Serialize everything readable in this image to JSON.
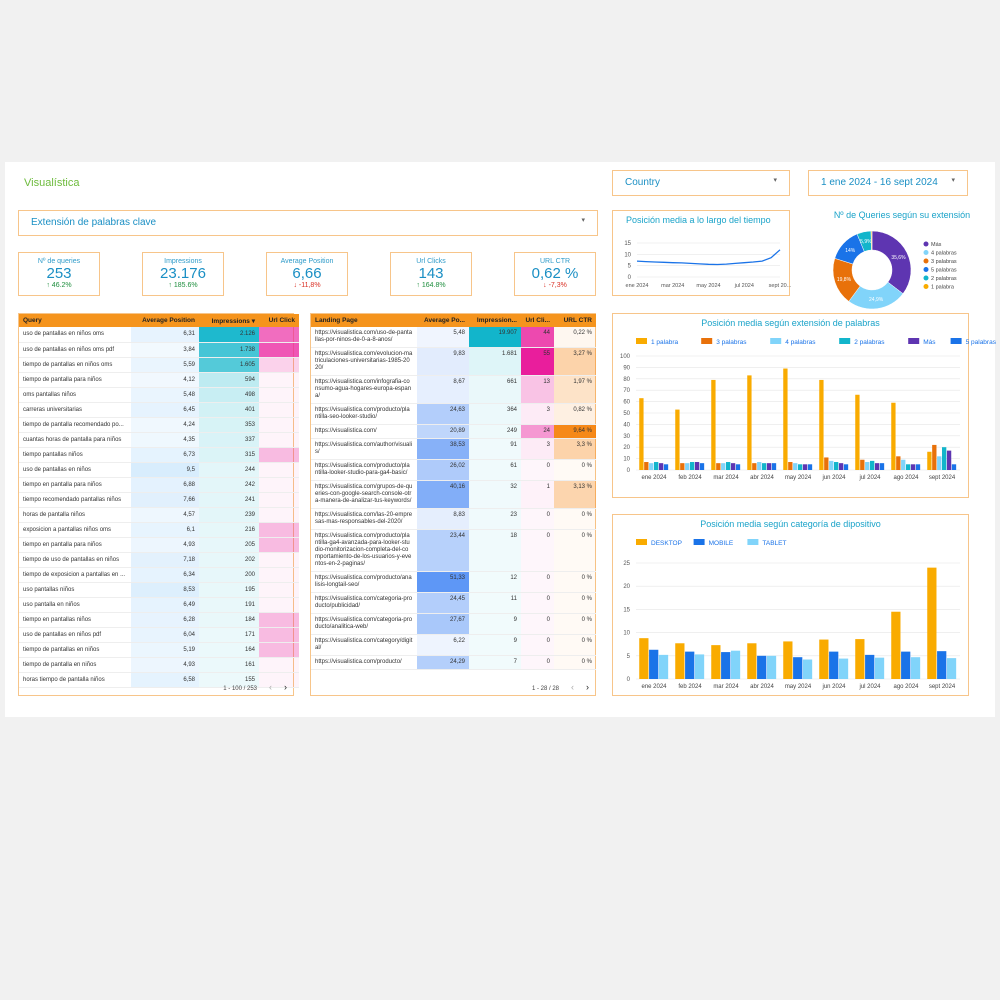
{
  "header": {
    "logo": "Visualística",
    "country": "Country",
    "date_range": "1 ene 2024 - 16 sept 2024",
    "filter": "Extensión de palabras clave"
  },
  "kpis": [
    {
      "label": "Nº de queries",
      "value": "253",
      "delta": "46.2%"
    },
    {
      "label": "Impressions",
      "value": "23.176",
      "delta": "185.6%"
    },
    {
      "label": "Average Position",
      "value": "6,66",
      "delta": "-11,8%"
    },
    {
      "label": "Url Clicks",
      "value": "143",
      "delta": "164.8%"
    },
    {
      "label": "URL CTR",
      "value": "0,62 %",
      "delta": "-7,3%"
    }
  ],
  "queries_table": {
    "columns": [
      "Query",
      "Average Position",
      "Impressions",
      "Url Click"
    ],
    "rows": [
      [
        "uso de pantallas en niños oms",
        "6,31",
        "2.126"
      ],
      [
        "uso de pantallas en niños oms pdf",
        "3,84",
        "1.738"
      ],
      [
        "tiempo de pantallas en niños oms",
        "5,59",
        "1.605"
      ],
      [
        "tiempo de pantalla para niños",
        "4,12",
        "594"
      ],
      [
        "oms pantallas niños",
        "5,48",
        "498"
      ],
      [
        "carreras universitarias",
        "6,45",
        "401"
      ],
      [
        "tiempo de pantalla recomendado po...",
        "4,24",
        "353"
      ],
      [
        "cuantas horas de pantalla para niños",
        "4,35",
        "337"
      ],
      [
        "tiempo pantallas niños",
        "6,73",
        "315"
      ],
      [
        "uso de pantallas en niños",
        "9,5",
        "244"
      ],
      [
        "tiempo en pantalla para niños",
        "6,88",
        "242"
      ],
      [
        "tiempo recomendado pantallas niños",
        "7,66",
        "241"
      ],
      [
        "horas de pantalla niños",
        "4,57",
        "239"
      ],
      [
        "exposicion a pantallas niños oms",
        "6,1",
        "216"
      ],
      [
        "tiempo en pantalla para niños",
        "4,93",
        "205"
      ],
      [
        "tiempo de uso de pantallas en niños",
        "7,18",
        "202"
      ],
      [
        "tiempo de exposicion a pantallas en ...",
        "6,34",
        "200"
      ],
      [
        "uso pantallas niños",
        "8,53",
        "195"
      ],
      [
        "uso pantalla en niños",
        "6,49",
        "191"
      ],
      [
        "tiempo en pantallas niños",
        "6,28",
        "184"
      ],
      [
        "uso de pantallas en niños pdf",
        "6,04",
        "171"
      ],
      [
        "tiempo de pantallas en niños",
        "5,19",
        "164"
      ],
      [
        "tiempo de pantalla en niños",
        "4,93",
        "161"
      ],
      [
        "horas tiempo de pantalla niños",
        "6,58",
        "155"
      ]
    ],
    "footer": "1 - 100 / 253"
  },
  "landing_table": {
    "columns": [
      "Landing Page",
      "Average Po...",
      "Impression...",
      "Url Cli...",
      "URL CTR"
    ],
    "rows": [
      [
        "https://visualistica.com/uso-de-pantallas-por-ninos-de-0-a-8-anos/",
        "5,48",
        "19.907",
        "44",
        "0,22 %"
      ],
      [
        "https://visualistica.com/evolucion-matriculaciones-universitarias-1985-2020/",
        "9,83",
        "1.681",
        "55",
        "3,27 %"
      ],
      [
        "https://visualistica.com/infografia-consumo-agua-hogares-europa-espana/",
        "8,67",
        "661",
        "13",
        "1,97 %"
      ],
      [
        "https://visualistica.com/producto/plantilla-seo-looker-studio/",
        "24,63",
        "364",
        "3",
        "0,82 %"
      ],
      [
        "https://visualistica.com/",
        "20,89",
        "249",
        "24",
        "9,64 %"
      ],
      [
        "https://visualistica.com/author/visualis/",
        "38,53",
        "91",
        "3",
        "3,3 %"
      ],
      [
        "https://visualistica.com/producto/plantilla-looker-studio-para-ga4-basic/",
        "26,02",
        "61",
        "0",
        "0 %"
      ],
      [
        "https://visualistica.com/grupos-de-queries-con-google-search-console-otra-manera-de-analizar-tus-keywords/",
        "40,16",
        "32",
        "1",
        "3,13 %"
      ],
      [
        "https://visualistica.com/las-20-empresas-mas-responsables-del-2020/",
        "8,83",
        "23",
        "0",
        "0 %"
      ],
      [
        "https://visualistica.com/producto/plantilla-ga4-avanzada-para-looker-studio-monitorizacion-completa-del-comportamiento-de-los-usuarios-y-eventos-en-2-paginas/",
        "23,44",
        "18",
        "0",
        "0 %"
      ],
      [
        "https://visualistica.com/producto/analisis-longtail-seo/",
        "51,33",
        "12",
        "0",
        "0 %"
      ],
      [
        "https://visualistica.com/categoria-producto/publicidad/",
        "24,45",
        "11",
        "0",
        "0 %"
      ],
      [
        "https://visualistica.com/categoria-producto/analitica-web/",
        "27,67",
        "9",
        "0",
        "0 %"
      ],
      [
        "https://visualistica.com/category/digital/",
        "6,22",
        "9",
        "0",
        "0 %"
      ],
      [
        "https://visualistica.com/producto/",
        "24,29",
        "7",
        "0",
        "0 %"
      ]
    ],
    "footer": "1 - 28 / 28"
  },
  "chart_data": [
    {
      "type": "line",
      "title": "Posición media a lo largo del tiempo",
      "categories": [
        "ene 2024",
        null,
        null,
        null,
        "mar 2024",
        null,
        null,
        null,
        "may 2024",
        null,
        null,
        null,
        "jul 2024",
        null,
        null,
        null,
        "sept 20..."
      ],
      "values": [
        7,
        6.8,
        6.6,
        6.5,
        6.3,
        6.2,
        6,
        5.8,
        5.6,
        5.5,
        5.7,
        6,
        6.3,
        6.6,
        7,
        8.5,
        12
      ],
      "color": "#1a73e8",
      "ylim": [
        0,
        15
      ],
      "yticks": [
        0,
        5,
        10,
        15
      ],
      "grid": true
    },
    {
      "type": "pie",
      "title": "Nº de Queries según su extensión",
      "donut": true,
      "legend": "right",
      "categories": [
        "Más",
        "4 palabras",
        "3 palabras",
        "5 palabras",
        "2 palabras",
        "1 palabra"
      ],
      "values": [
        35.6,
        24.9,
        19.8,
        14,
        5.9,
        0.4
      ],
      "value_labels": [
        "35,6%",
        "24,9%",
        "19,8%",
        "14%",
        "5,9%",
        null
      ],
      "colors": [
        "#5e35b1",
        "#81d4fa",
        "#e8710a",
        "#1a73e8",
        "#12b5cb",
        "#f9ab00"
      ]
    },
    {
      "type": "bar",
      "title": "Posición  media según extensión de palabras",
      "legend": "top",
      "grid": true,
      "categories": [
        "ene 2024",
        "feb 2024",
        "mar 2024",
        "abr 2024",
        "may 2024",
        "jun 2024",
        "jul 2024",
        "ago 2024",
        "sept 2024"
      ],
      "series": [
        {
          "name": "1 palabra",
          "color": "#f9ab00",
          "values": [
            63,
            53,
            79,
            83,
            89,
            79,
            66,
            59,
            16
          ]
        },
        {
          "name": "3 palabras",
          "color": "#e8710a",
          "values": [
            7,
            6,
            6,
            6,
            7,
            11,
            9,
            12,
            22
          ]
        },
        {
          "name": "4 palabras",
          "color": "#81d4fa",
          "values": [
            6,
            6,
            6,
            7,
            6,
            8,
            7,
            9,
            12
          ]
        },
        {
          "name": "2 palabras",
          "color": "#12b5cb",
          "values": [
            7,
            7,
            7,
            6,
            5,
            7,
            8,
            5,
            20
          ]
        },
        {
          "name": "Más",
          "color": "#5e35b1",
          "values": [
            6,
            7,
            6,
            6,
            5,
            6,
            6,
            5,
            17
          ]
        },
        {
          "name": "5 palabras",
          "color": "#1a73e8",
          "values": [
            5,
            6,
            5,
            6,
            5,
            5,
            6,
            5,
            5
          ]
        }
      ],
      "ylim": [
        0,
        100
      ],
      "yticks": [
        0,
        10,
        20,
        30,
        40,
        50,
        60,
        70,
        80,
        90,
        100
      ]
    },
    {
      "type": "bar",
      "title": "Posición  media según categoría de dipositivo",
      "legend": "top",
      "grid": true,
      "categories": [
        "ene 2024",
        "feb 2024",
        "mar 2024",
        "abr 2024",
        "may 2024",
        "jun 2024",
        "jul 2024",
        "ago 2024",
        "sept 2024"
      ],
      "series": [
        {
          "name": "DESKTOP",
          "color": "#f9ab00",
          "values": [
            8.8,
            7.7,
            7.3,
            7.7,
            8.1,
            8.5,
            8.6,
            14.5,
            24
          ]
        },
        {
          "name": "MOBILE",
          "color": "#1a73e8",
          "values": [
            6.3,
            5.9,
            5.8,
            5,
            4.7,
            5.9,
            5.2,
            5.9,
            6
          ]
        },
        {
          "name": "TABLET",
          "color": "#81d4fa",
          "values": [
            5.2,
            5.3,
            6.1,
            5,
            4.2,
            4.4,
            4.6,
            4.7,
            4.5
          ]
        }
      ],
      "ylim": [
        0,
        25
      ],
      "yticks": [
        0,
        5,
        10,
        15,
        20,
        25
      ]
    }
  ]
}
